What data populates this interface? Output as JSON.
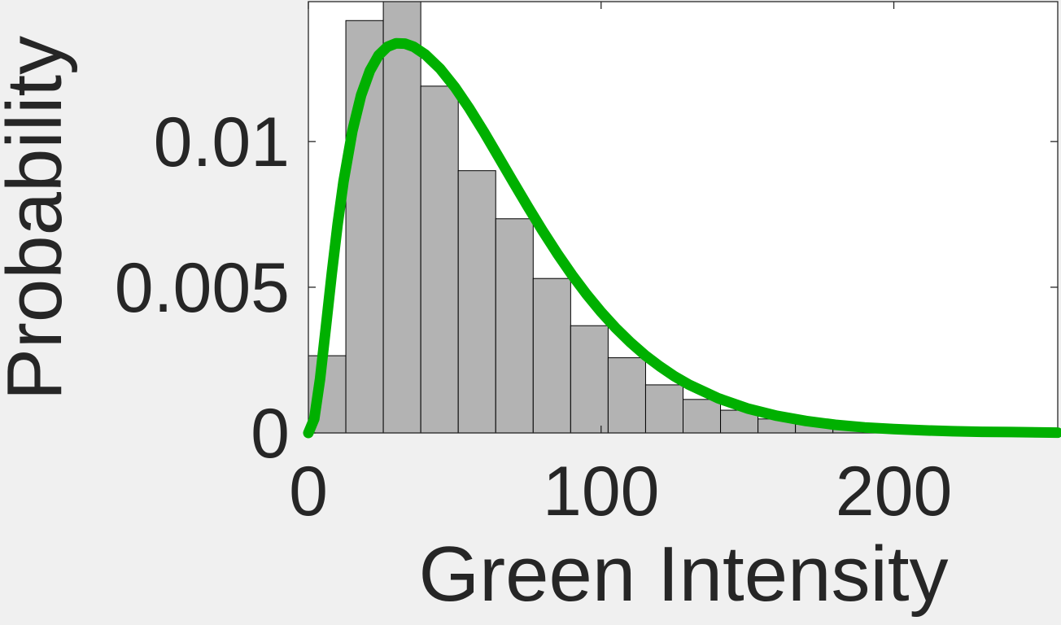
{
  "chart_data": {
    "type": "bar",
    "xlabel": "Green Intensity",
    "ylabel": "Probability",
    "xlim": [
      0,
      256
    ],
    "ylim": [
      0,
      0.0148
    ],
    "x_ticks": [
      0,
      100,
      200
    ],
    "x_tick_labels": [
      "0",
      "100",
      "200"
    ],
    "y_ticks": [
      0,
      0.005,
      0.01
    ],
    "y_tick_labels": [
      "0",
      "0.005",
      "0.01"
    ],
    "grid": false,
    "bin_edges": [
      0,
      12.8,
      25.6,
      38.4,
      51.2,
      64,
      76.8,
      89.6,
      102.4,
      115.2,
      128,
      140.8,
      153.6,
      166.4,
      179.2,
      192,
      204.8,
      217.6,
      230.4,
      243.2,
      256
    ],
    "values": [
      0.00265,
      0.01415,
      0.0148,
      0.0119,
      0.009,
      0.00735,
      0.0053,
      0.00368,
      0.00258,
      0.00165,
      0.00115,
      0.00078,
      0.00048,
      0.0003,
      0.00018,
      0.0001,
      6e-05,
      3e-05,
      2e-05,
      1e-05
    ],
    "bar_color": "#b3b3b3",
    "curve": {
      "type": "fitted-distribution",
      "color": "#00b000",
      "x": [
        0,
        2,
        4,
        6,
        8,
        10,
        12,
        15,
        18,
        21,
        24,
        27,
        30,
        33,
        36,
        40,
        45,
        50,
        55,
        60,
        65,
        70,
        75,
        80,
        85,
        90,
        95,
        100,
        105,
        110,
        115,
        120,
        125,
        130,
        140,
        150,
        160,
        170,
        180,
        190,
        200,
        210,
        220,
        230,
        240,
        256
      ],
      "y": [
        0,
        0.00048,
        0.00186,
        0.00365,
        0.00548,
        0.00717,
        0.00863,
        0.01035,
        0.01159,
        0.01243,
        0.01296,
        0.01325,
        0.01337,
        0.01336,
        0.01325,
        0.01298,
        0.0125,
        0.01187,
        0.01113,
        0.01032,
        0.00947,
        0.00861,
        0.00776,
        0.00694,
        0.00616,
        0.00543,
        0.00476,
        0.00415,
        0.0036,
        0.00311,
        0.00267,
        0.00229,
        0.00195,
        0.00166,
        0.00119,
        0.00084,
        0.00059,
        0.00041,
        0.00028,
        0.00019,
        0.00013,
        9e-05,
        6e-05,
        4e-05,
        3e-05,
        1e-05
      ]
    }
  }
}
